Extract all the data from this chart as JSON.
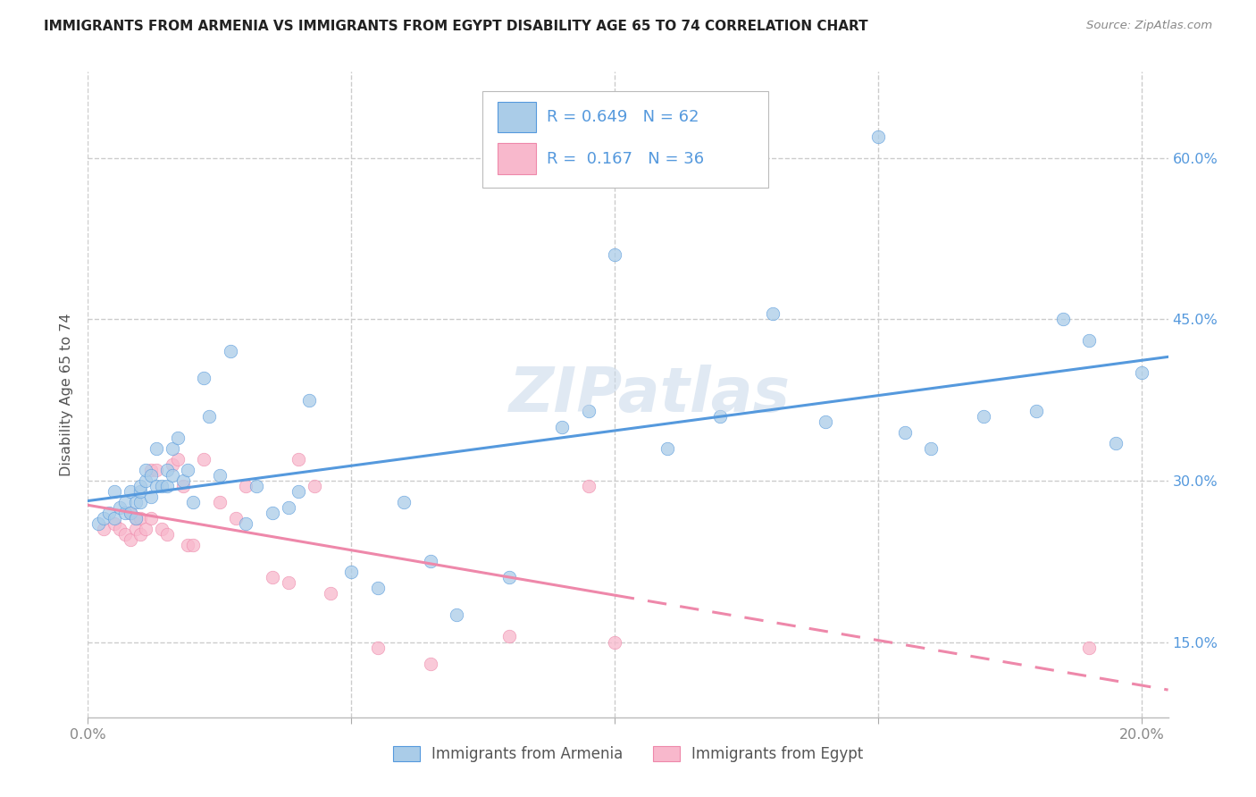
{
  "title": "IMMIGRANTS FROM ARMENIA VS IMMIGRANTS FROM EGYPT DISABILITY AGE 65 TO 74 CORRELATION CHART",
  "source": "Source: ZipAtlas.com",
  "ylabel": "Disability Age 65 to 74",
  "legend_label1": "Immigrants from Armenia",
  "legend_label2": "Immigrants from Egypt",
  "R1": 0.649,
  "N1": 62,
  "R2": 0.167,
  "N2": 36,
  "color1": "#aacce8",
  "color2": "#f8b8cc",
  "line_color1": "#5599dd",
  "line_color2": "#ee88aa",
  "xlim": [
    0.0,
    0.205
  ],
  "ylim": [
    0.08,
    0.68
  ],
  "ytick_positions": [
    0.15,
    0.3,
    0.45,
    0.6
  ],
  "ytick_labels": [
    "15.0%",
    "30.0%",
    "45.0%",
    "60.0%"
  ],
  "xtick_positions": [
    0.0,
    0.05,
    0.1,
    0.15,
    0.2
  ],
  "xtick_labels": [
    "0.0%",
    "",
    "",
    "",
    "20.0%"
  ],
  "armenia_x": [
    0.002,
    0.003,
    0.004,
    0.005,
    0.005,
    0.006,
    0.007,
    0.007,
    0.008,
    0.008,
    0.009,
    0.009,
    0.01,
    0.01,
    0.01,
    0.011,
    0.011,
    0.012,
    0.012,
    0.013,
    0.013,
    0.014,
    0.015,
    0.015,
    0.016,
    0.016,
    0.017,
    0.018,
    0.019,
    0.02,
    0.022,
    0.023,
    0.025,
    0.027,
    0.03,
    0.032,
    0.035,
    0.038,
    0.04,
    0.042,
    0.05,
    0.055,
    0.06,
    0.065,
    0.07,
    0.08,
    0.09,
    0.095,
    0.1,
    0.11,
    0.12,
    0.13,
    0.14,
    0.15,
    0.155,
    0.16,
    0.17,
    0.18,
    0.185,
    0.19,
    0.195,
    0.2
  ],
  "armenia_y": [
    0.26,
    0.265,
    0.27,
    0.265,
    0.29,
    0.275,
    0.27,
    0.28,
    0.27,
    0.29,
    0.265,
    0.28,
    0.28,
    0.29,
    0.295,
    0.3,
    0.31,
    0.285,
    0.305,
    0.295,
    0.33,
    0.295,
    0.295,
    0.31,
    0.305,
    0.33,
    0.34,
    0.3,
    0.31,
    0.28,
    0.395,
    0.36,
    0.305,
    0.42,
    0.26,
    0.295,
    0.27,
    0.275,
    0.29,
    0.375,
    0.215,
    0.2,
    0.28,
    0.225,
    0.175,
    0.21,
    0.35,
    0.365,
    0.51,
    0.33,
    0.36,
    0.455,
    0.355,
    0.62,
    0.345,
    0.33,
    0.36,
    0.365,
    0.45,
    0.43,
    0.335,
    0.4
  ],
  "egypt_x": [
    0.003,
    0.005,
    0.006,
    0.007,
    0.008,
    0.008,
    0.009,
    0.009,
    0.01,
    0.01,
    0.011,
    0.012,
    0.012,
    0.013,
    0.014,
    0.015,
    0.016,
    0.017,
    0.018,
    0.019,
    0.02,
    0.022,
    0.025,
    0.028,
    0.03,
    0.035,
    0.038,
    0.04,
    0.043,
    0.046,
    0.055,
    0.065,
    0.08,
    0.095,
    0.1,
    0.19
  ],
  "egypt_y": [
    0.255,
    0.26,
    0.255,
    0.25,
    0.245,
    0.27,
    0.255,
    0.265,
    0.25,
    0.265,
    0.255,
    0.265,
    0.31,
    0.31,
    0.255,
    0.25,
    0.315,
    0.32,
    0.295,
    0.24,
    0.24,
    0.32,
    0.28,
    0.265,
    0.295,
    0.21,
    0.205,
    0.32,
    0.295,
    0.195,
    0.145,
    0.13,
    0.155,
    0.295,
    0.15,
    0.145
  ],
  "watermark": "ZIPatlas",
  "bg_color": "#ffffff",
  "grid_color": "#cccccc",
  "title_color": "#222222",
  "source_color": "#888888",
  "axis_label_color": "#555555",
  "tick_color": "#888888",
  "right_tick_color": "#5599dd"
}
